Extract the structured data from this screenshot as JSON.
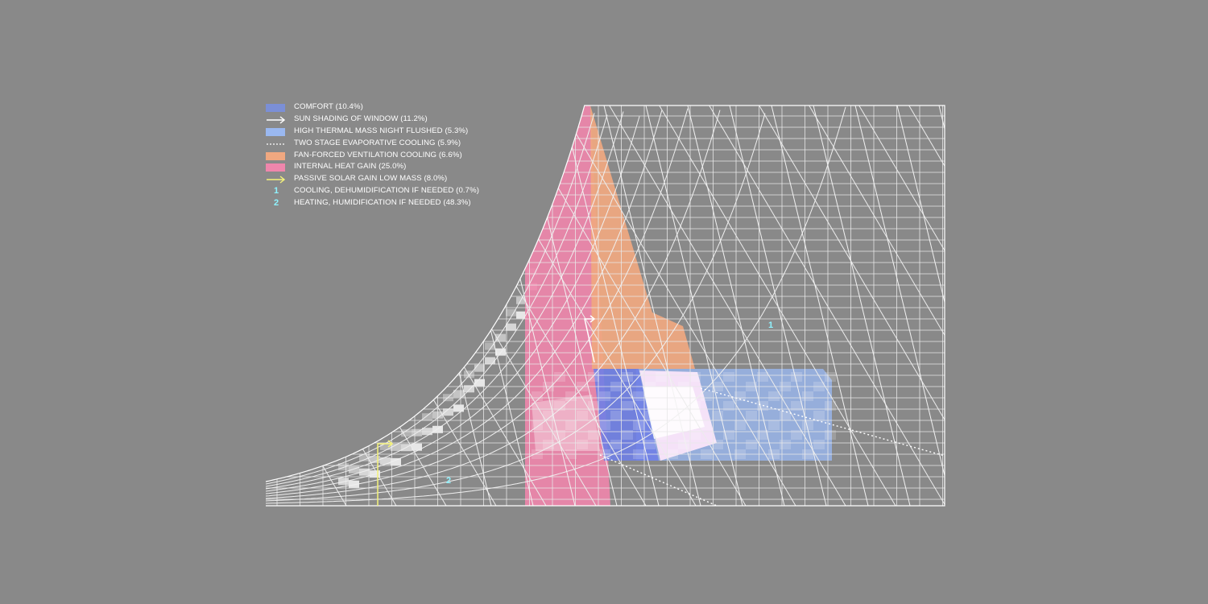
{
  "legend": [
    {
      "label": "COMFORT (10.4%)",
      "marker": "swatch",
      "color": "#7b8fd6"
    },
    {
      "label": "SUN SHADING OF WINDOW (11.2%)",
      "marker": "arrow",
      "color": "#ffffff"
    },
    {
      "label": "HIGH THERMAL MASS NIGHT FLUSHED (5.3%)",
      "marker": "swatch",
      "color": "#9ab8f0"
    },
    {
      "label": "TWO STAGE EVAPORATIVE COOLING (5.9%)",
      "marker": "dotted",
      "color": "#ffffff"
    },
    {
      "label": "FAN-FORCED VENTILATION COOLING (6.6%)",
      "marker": "swatch",
      "color": "#f0a880"
    },
    {
      "label": "INTERNAL HEAT GAIN (25.0%)",
      "marker": "swatch",
      "color": "#ef86ac"
    },
    {
      "label": "PASSIVE SOLAR GAIN LOW MASS (8.0%)",
      "marker": "arrow",
      "color": "#f4f27a"
    },
    {
      "label": "COOLING, DEHUMIDIFICATION IF NEEDED (0.7%)",
      "marker": "number",
      "number": "1",
      "color": "#8ff3ff"
    },
    {
      "label": "HEATING, HUMIDIFICATION IF NEEDED (48.3%)",
      "marker": "number",
      "number": "2",
      "color": "#8ff3ff"
    }
  ],
  "chart_data": {
    "type": "psychrometric",
    "zones": [
      {
        "name": "COMFORT (10.4%)",
        "percent": 10.4,
        "color": "#6f80e6"
      },
      {
        "name": "SUN SHADING OF WINDOW (11.2%)",
        "percent": 11.2,
        "color": "#ffffff"
      },
      {
        "name": "HIGH THERMAL MASS NIGHT FLUSHED (5.3%)",
        "percent": 5.3,
        "color": "#9ab8f0"
      },
      {
        "name": "TWO STAGE EVAPORATIVE COOLING (5.9%)",
        "percent": 5.9,
        "color": "#ffffff"
      },
      {
        "name": "FAN-FORCED VENTILATION COOLING (6.6%)",
        "percent": 6.6,
        "color": "#f0a880"
      },
      {
        "name": "INTERNAL HEAT GAIN (25.0%)",
        "percent": 25.0,
        "color": "#ef86ac"
      },
      {
        "name": "PASSIVE SOLAR GAIN LOW MASS (8.0%)",
        "percent": 8.0,
        "color": "#f4f27a"
      }
    ],
    "region_labels": [
      {
        "number": "1",
        "name": "COOLING, DEHUMIDIFICATION IF NEEDED (0.7%)",
        "percent": 0.7
      },
      {
        "number": "2",
        "name": "HEATING, HUMIDIFICATION IF NEEDED (48.3%)",
        "percent": 48.3
      }
    ],
    "grid": true,
    "legend_position": "top-left"
  }
}
